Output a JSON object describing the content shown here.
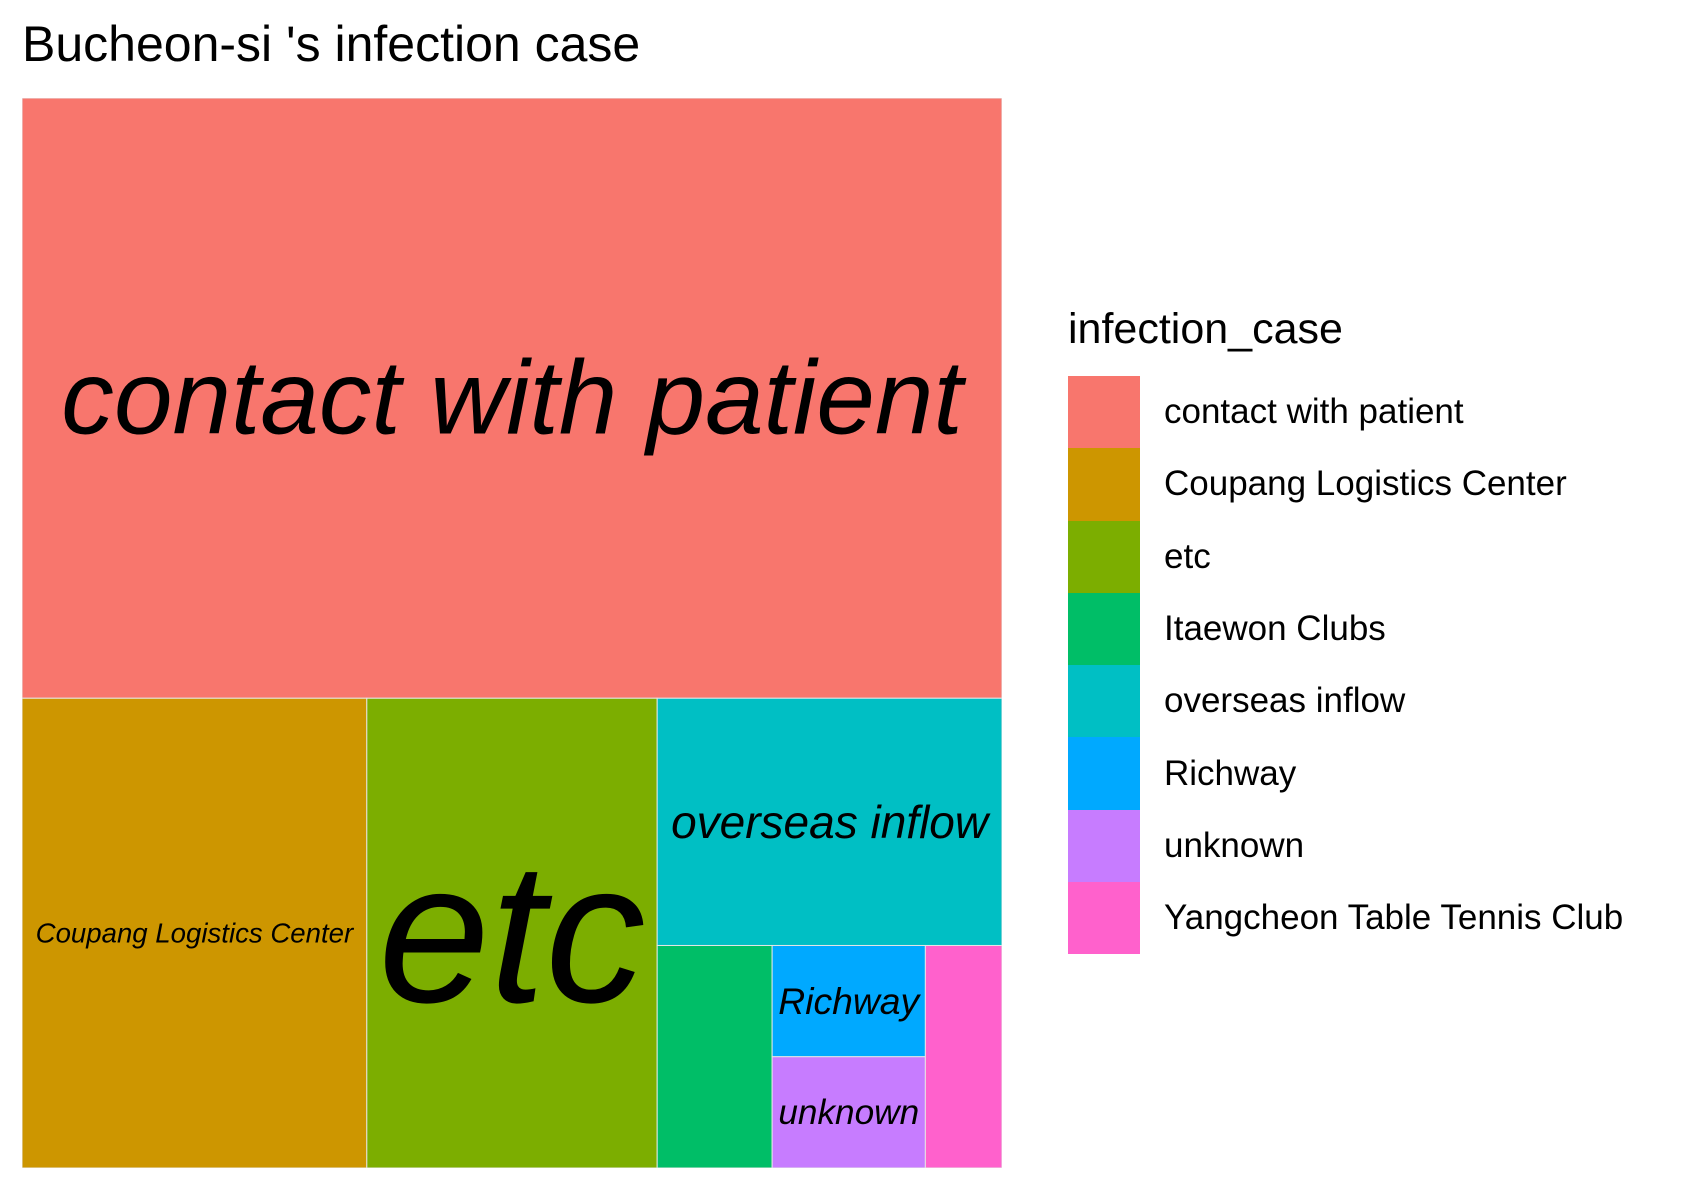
{
  "chart_data": {
    "type": "treemap",
    "title": "Bucheon-si 's infection case",
    "legend_title": "infection_case",
    "legend_position": "right",
    "categories": [
      "contact with patient",
      "Coupang Logistics Center",
      "etc",
      "Itaewon Clubs",
      "overseas inflow",
      "Richway",
      "unknown",
      "Yangcheon Table Tennis Club"
    ],
    "values": [
      69,
      19,
      16,
      3,
      10,
      2,
      2,
      2
    ],
    "colors": [
      "#F8766D",
      "#CD9600",
      "#7CAE00",
      "#00BE67",
      "#00BFC4",
      "#00A9FF",
      "#C77CFF",
      "#FF61CC"
    ],
    "tile_labels_shown": [
      "contact with patient",
      "etc",
      "Coupang Logistics Center",
      "overseas inflow",
      "Richway",
      "unknown"
    ]
  }
}
